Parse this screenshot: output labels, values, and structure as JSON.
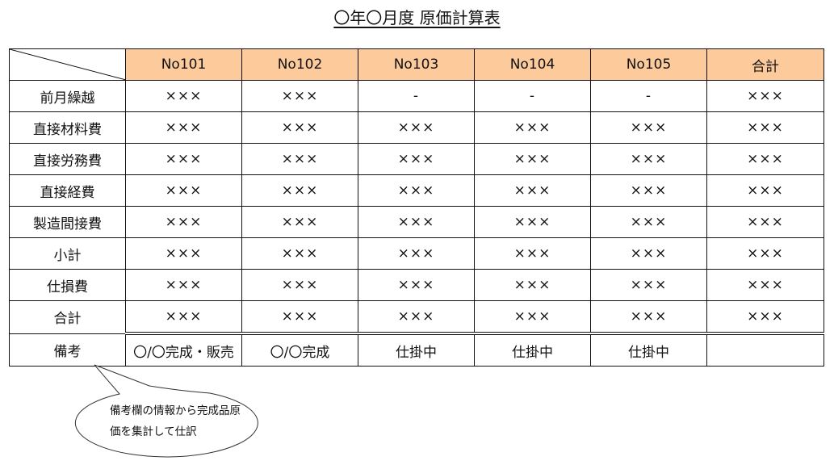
{
  "title": "〇年〇月度 原価計算表",
  "columns": [
    "No101",
    "No102",
    "No103",
    "No104",
    "No105",
    "合計"
  ],
  "rows": [
    {
      "label": "前月繰越",
      "values": [
        "×××",
        "×××",
        "-",
        "-",
        "-",
        "×××"
      ]
    },
    {
      "label": "直接材料費",
      "values": [
        "×××",
        "×××",
        "×××",
        "×××",
        "×××",
        "×××"
      ]
    },
    {
      "label": "直接労務費",
      "values": [
        "×××",
        "×××",
        "×××",
        "×××",
        "×××",
        "×××"
      ]
    },
    {
      "label": "直接経費",
      "values": [
        "×××",
        "×××",
        "×××",
        "×××",
        "×××",
        "×××"
      ]
    },
    {
      "label": "製造間接費",
      "values": [
        "×××",
        "×××",
        "×××",
        "×××",
        "×××",
        "×××"
      ]
    },
    {
      "label": "小計",
      "values": [
        "×××",
        "×××",
        "×××",
        "×××",
        "×××",
        "×××"
      ]
    },
    {
      "label": "仕損費",
      "values": [
        "×××",
        "×××",
        "×××",
        "×××",
        "×××",
        "×××"
      ]
    },
    {
      "label": "合計",
      "values": [
        "×××",
        "×××",
        "×××",
        "×××",
        "×××",
        "×××"
      ]
    }
  ],
  "note_row": {
    "label": "備考",
    "values": [
      "〇/〇完成・販売",
      "〇/〇完成",
      "仕掛中",
      "仕掛中",
      "仕掛中",
      ""
    ]
  },
  "callout": {
    "line1": "備考欄の情報から完成品原",
    "line2": "価を集計して仕訳"
  },
  "colors": {
    "header_bg": "#fdca9c"
  }
}
